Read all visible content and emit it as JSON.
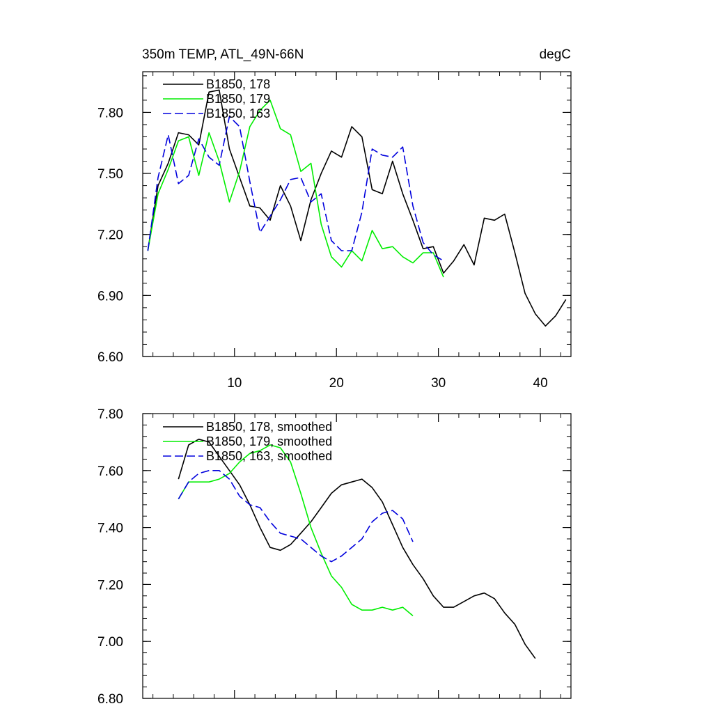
{
  "chart_data": [
    {
      "type": "line",
      "title": "350m TEMP, ATL_49N-66N",
      "title_right": "degC",
      "xlabel": "",
      "ylabel": "",
      "xlim": [
        1,
        43
      ],
      "ylim": [
        6.6,
        8.0
      ],
      "x_ticks": [
        10,
        20,
        30,
        40
      ],
      "x_tick_labels": [
        "10",
        "20",
        "30",
        "40"
      ],
      "y_ticks": [
        6.6,
        6.9,
        7.2,
        7.5,
        7.8
      ],
      "y_tick_labels": [
        "6.60",
        "6.90",
        "7.20",
        "7.50",
        "7.80"
      ],
      "legend_position": "top-left",
      "series": [
        {
          "name": "B1850, 178",
          "color": "#000000",
          "dash": "solid",
          "x": [
            1.5,
            2.5,
            3.5,
            4.5,
            5.5,
            6.5,
            7.5,
            8.5,
            9.5,
            10.5,
            11.5,
            12.5,
            13.5,
            14.5,
            15.5,
            16.5,
            17.5,
            18.5,
            19.5,
            20.5,
            21.5,
            22.5,
            23.5,
            24.5,
            25.5,
            26.5,
            27.5,
            28.5,
            29.5,
            30.5,
            31.5,
            32.5,
            33.5,
            34.5,
            35.5,
            36.5,
            37.5,
            38.5,
            39.5,
            40.5,
            41.5,
            42.5
          ],
          "values": [
            7.12,
            7.44,
            7.55,
            7.7,
            7.69,
            7.64,
            7.9,
            7.91,
            7.62,
            7.48,
            7.34,
            7.33,
            7.27,
            7.44,
            7.34,
            7.17,
            7.37,
            7.5,
            7.61,
            7.58,
            7.73,
            7.68,
            7.42,
            7.4,
            7.56,
            7.4,
            7.27,
            7.13,
            7.14,
            7.01,
            7.07,
            7.15,
            7.05,
            7.28,
            7.27,
            7.3,
            7.11,
            6.91,
            6.81,
            6.75,
            6.8,
            6.88
          ]
        },
        {
          "name": "B1850, 179",
          "color": "#00ee00",
          "dash": "solid",
          "x": [
            1.5,
            2.5,
            3.5,
            4.5,
            5.5,
            6.5,
            7.5,
            8.5,
            9.5,
            10.5,
            11.5,
            12.5,
            13.5,
            14.5,
            15.5,
            16.5,
            17.5,
            18.5,
            19.5,
            20.5,
            21.5,
            22.5,
            23.5,
            24.5,
            25.5,
            26.5,
            27.5,
            28.5,
            29.5,
            30.5
          ],
          "values": [
            7.12,
            7.4,
            7.52,
            7.66,
            7.68,
            7.49,
            7.7,
            7.56,
            7.36,
            7.51,
            7.73,
            7.81,
            7.86,
            7.72,
            7.69,
            7.51,
            7.55,
            7.25,
            7.09,
            7.04,
            7.12,
            7.07,
            7.22,
            7.13,
            7.14,
            7.09,
            7.06,
            7.11,
            7.11,
            6.99
          ]
        },
        {
          "name": "B1850, 163",
          "color": "#0000dd",
          "dash": "dashed",
          "x": [
            1.5,
            2.5,
            3.5,
            4.5,
            5.5,
            6.5,
            7.5,
            8.5,
            9.5,
            10.5,
            11.5,
            12.5,
            13.5,
            14.5,
            15.5,
            16.5,
            17.5,
            18.5,
            19.5,
            20.5,
            21.5,
            22.5,
            23.5,
            24.5,
            25.5,
            26.5,
            27.5,
            28.5,
            29.5,
            30.5
          ],
          "values": [
            7.12,
            7.48,
            7.69,
            7.45,
            7.49,
            7.67,
            7.58,
            7.54,
            7.78,
            7.73,
            7.46,
            7.21,
            7.29,
            7.37,
            7.47,
            7.48,
            7.36,
            7.4,
            7.17,
            7.12,
            7.12,
            7.31,
            7.62,
            7.59,
            7.58,
            7.63,
            7.34,
            7.16,
            7.1,
            7.07
          ]
        }
      ]
    },
    {
      "type": "line",
      "title": "",
      "xlabel": "",
      "ylabel": "",
      "xlim": [
        1,
        43
      ],
      "ylim": [
        6.8,
        7.8
      ],
      "x_ticks": [
        10,
        20,
        30,
        40
      ],
      "x_tick_labels": [],
      "y_ticks": [
        6.8,
        7.0,
        7.2,
        7.4,
        7.6,
        7.8
      ],
      "y_tick_labels": [
        "6.80",
        "7.00",
        "7.20",
        "7.40",
        "7.60",
        "7.80"
      ],
      "legend_position": "top-left",
      "series": [
        {
          "name": "B1850, 178, smoothed",
          "color": "#000000",
          "dash": "solid",
          "x": [
            4.5,
            5.5,
            6.5,
            7.5,
            8.5,
            9.5,
            10.5,
            11.5,
            12.5,
            13.5,
            14.5,
            15.5,
            16.5,
            17.5,
            18.5,
            19.5,
            20.5,
            21.5,
            22.5,
            23.5,
            24.5,
            25.5,
            26.5,
            27.5,
            28.5,
            29.5,
            30.5,
            31.5,
            32.5,
            33.5,
            34.5,
            35.5,
            36.5,
            37.5,
            38.5,
            39.5
          ],
          "values": [
            7.57,
            7.69,
            7.71,
            7.7,
            7.65,
            7.6,
            7.55,
            7.48,
            7.4,
            7.33,
            7.32,
            7.34,
            7.38,
            7.42,
            7.47,
            7.52,
            7.55,
            7.56,
            7.57,
            7.54,
            7.49,
            7.41,
            7.33,
            7.27,
            7.22,
            7.16,
            7.12,
            7.12,
            7.14,
            7.16,
            7.17,
            7.15,
            7.1,
            7.06,
            6.99,
            6.94
          ]
        },
        {
          "name": "B1850, 179, smoothed",
          "color": "#00ee00",
          "dash": "solid",
          "x": [
            4.5,
            5.5,
            6.5,
            7.5,
            8.5,
            9.5,
            10.5,
            11.5,
            12.5,
            13.5,
            14.5,
            15.5,
            16.5,
            17.5,
            18.5,
            19.5,
            20.5,
            21.5,
            22.5,
            23.5,
            24.5,
            25.5,
            26.5,
            27.5
          ],
          "values": [
            7.5,
            7.56,
            7.56,
            7.56,
            7.57,
            7.59,
            7.63,
            7.66,
            7.67,
            7.69,
            7.68,
            7.63,
            7.52,
            7.4,
            7.31,
            7.23,
            7.19,
            7.13,
            7.11,
            7.11,
            7.12,
            7.11,
            7.12,
            7.09
          ]
        },
        {
          "name": "B1850, 163, smoothed",
          "color": "#0000dd",
          "dash": "dashed",
          "x": [
            4.5,
            5.5,
            6.5,
            7.5,
            8.5,
            9.5,
            10.5,
            11.5,
            12.5,
            13.5,
            14.5,
            15.5,
            16.5,
            17.5,
            18.5,
            19.5,
            20.5,
            21.5,
            22.5,
            23.5,
            24.5,
            25.5,
            26.5,
            27.5
          ],
          "values": [
            7.5,
            7.56,
            7.59,
            7.6,
            7.6,
            7.57,
            7.51,
            7.48,
            7.47,
            7.42,
            7.38,
            7.37,
            7.36,
            7.33,
            7.3,
            7.28,
            7.3,
            7.33,
            7.36,
            7.42,
            7.45,
            7.46,
            7.43,
            7.35
          ]
        }
      ]
    }
  ]
}
